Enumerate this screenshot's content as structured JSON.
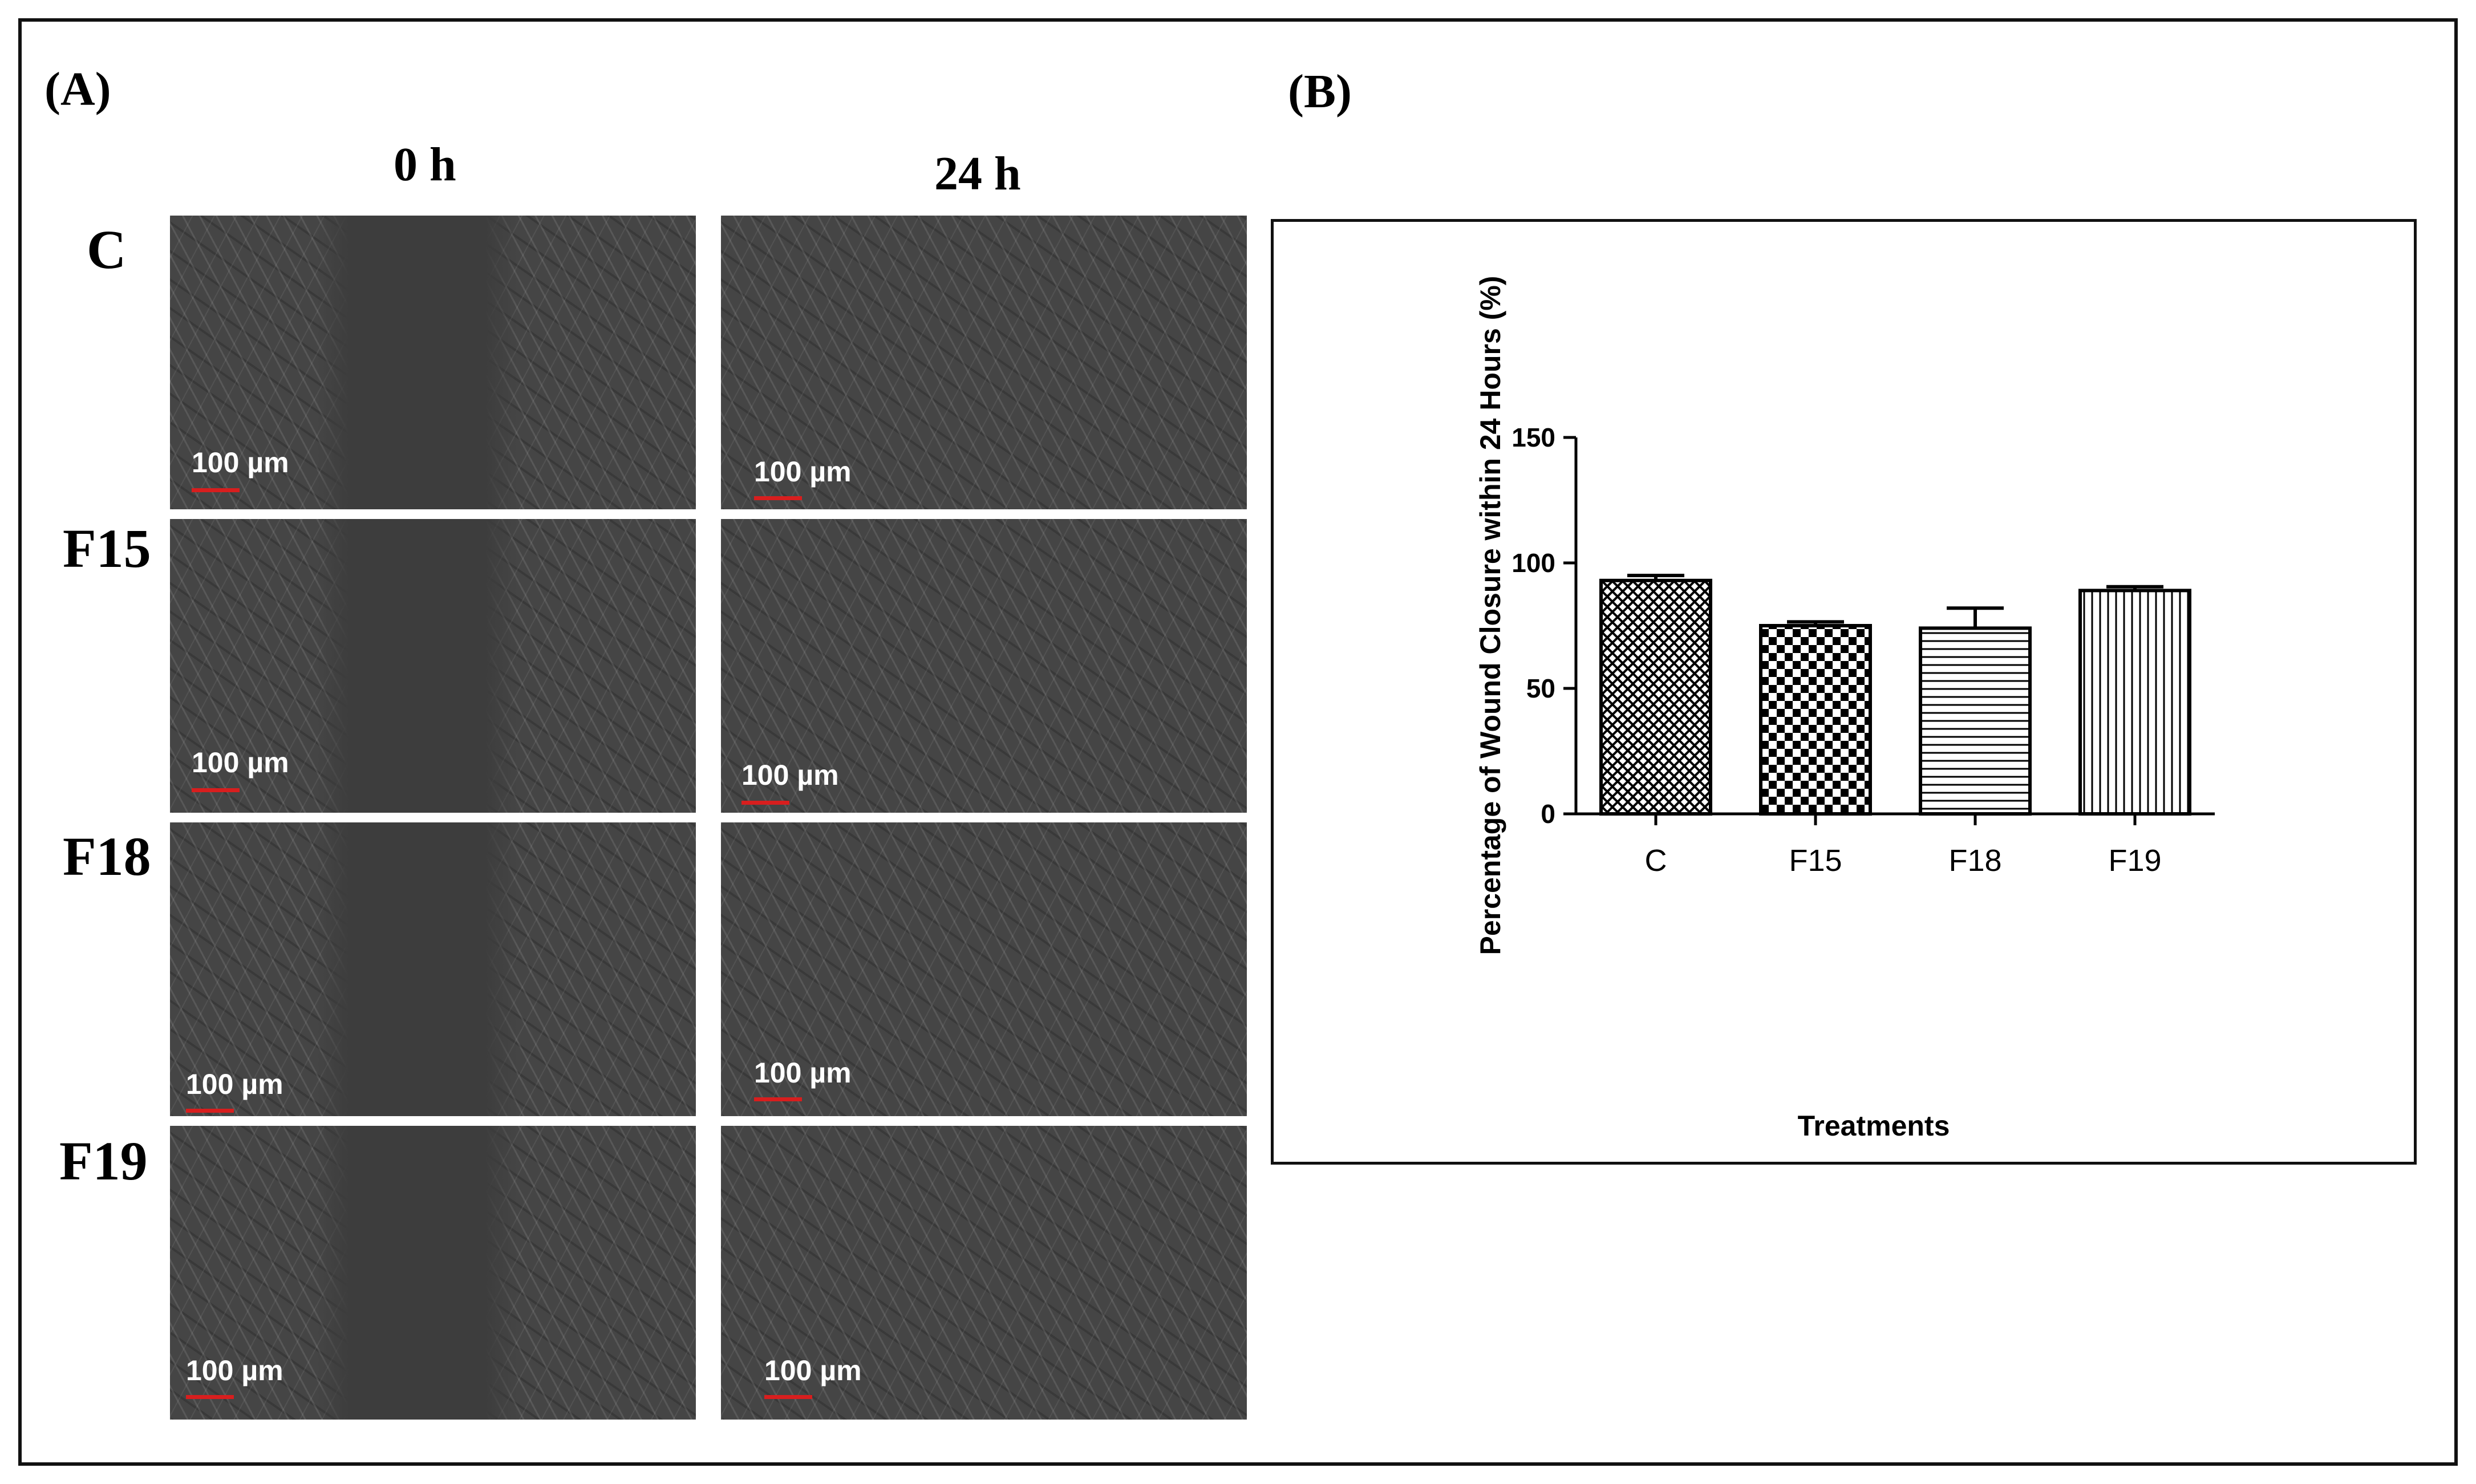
{
  "panels": {
    "a_label": "(A)",
    "b_label": "(B)"
  },
  "micrographs": {
    "time_labels": [
      "0 h",
      "24 h"
    ],
    "rows": [
      {
        "label": "C",
        "scale_labels": [
          "100 µm",
          "100 µm"
        ]
      },
      {
        "label": "F15",
        "scale_labels": [
          "100 µm",
          "100 µm"
        ]
      },
      {
        "label": "F18",
        "scale_labels": [
          "100 µm",
          "100 µm"
        ]
      },
      {
        "label": "F19",
        "scale_labels": [
          "100 µm",
          "100 µm"
        ]
      }
    ]
  },
  "chart_data": {
    "type": "bar",
    "categories": [
      "C",
      "F15",
      "F18",
      "F19"
    ],
    "values": [
      93,
      75,
      74,
      89
    ],
    "errors": [
      2,
      1.5,
      8,
      1.5
    ],
    "xlabel": "Treatments",
    "ylabel": "Percentage of Wound Closure within 24 Hours (%)",
    "ylim": [
      0,
      150
    ],
    "yticks": [
      0,
      50,
      100,
      150
    ],
    "patterns": [
      "crosshatch",
      "checkerboard",
      "horizontal-lines",
      "vertical-lines"
    ],
    "grid": false,
    "bar_fill_color": "#ffffff",
    "bar_stroke_color": "#000000"
  }
}
